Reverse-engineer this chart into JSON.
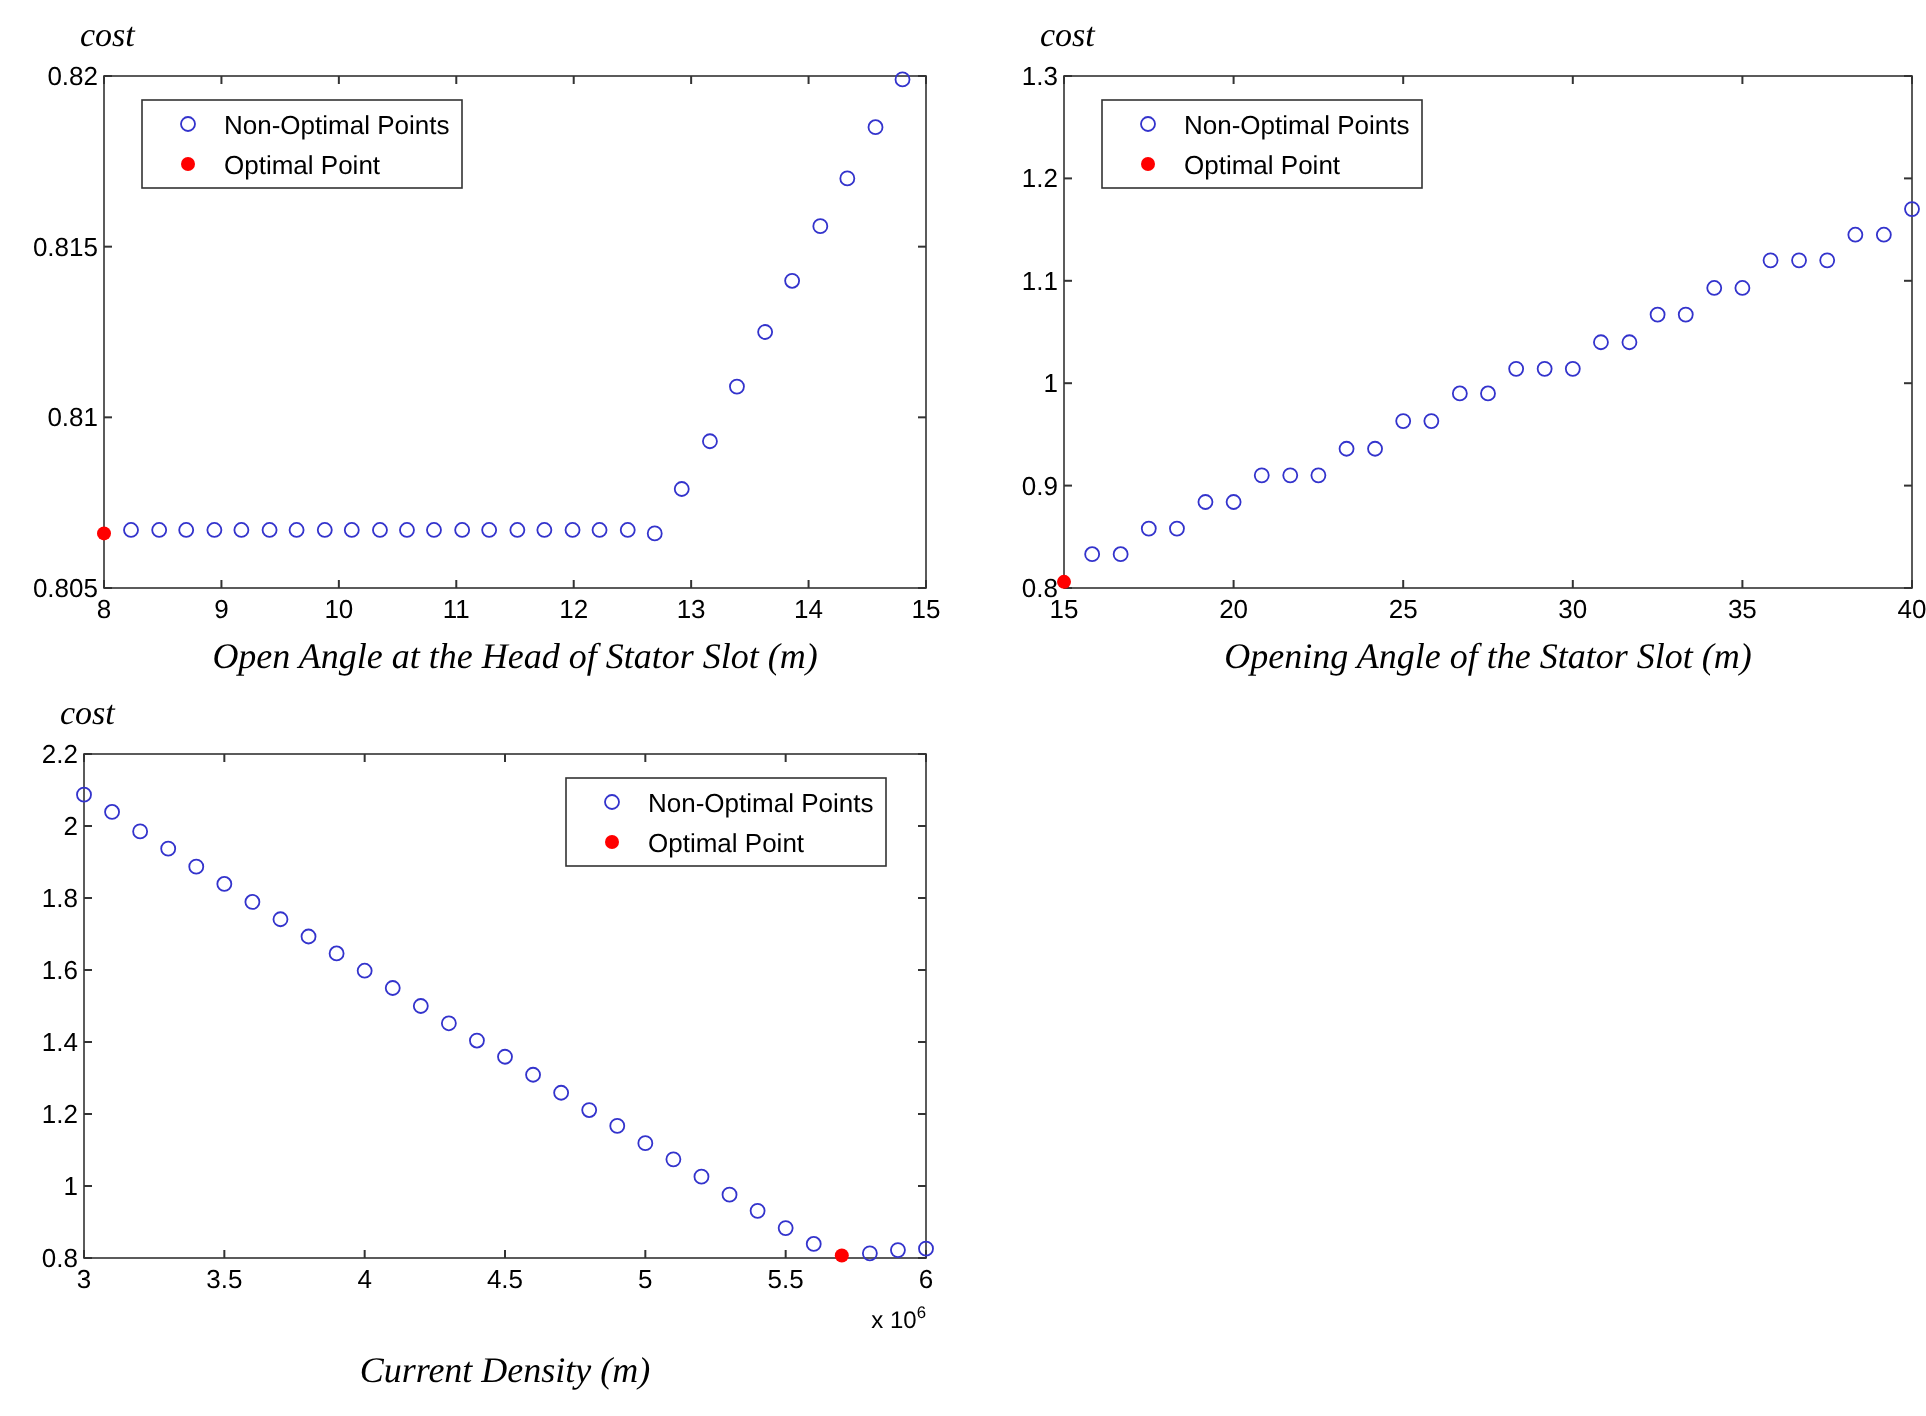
{
  "chart_data": [
    {
      "type": "scatter",
      "ylabel": "cost",
      "xlabel": "Open Angle at the Head of Stator Slot (m)",
      "xlim": [
        8,
        15
      ],
      "xticks": [
        8,
        9,
        10,
        11,
        12,
        13,
        14,
        15
      ],
      "ylim": [
        0.805,
        0.82
      ],
      "yticks": [
        0.805,
        0.81,
        0.815,
        0.82
      ],
      "legend": "top left",
      "marker": "circle",
      "series": [
        {
          "name": "Non-Optimal Points",
          "color": "#3333cc",
          "x": [
            8.23,
            8.47,
            8.7,
            8.94,
            9.17,
            9.41,
            9.64,
            9.88,
            10.11,
            10.35,
            10.58,
            10.81,
            11.05,
            11.28,
            11.52,
            11.75,
            11.99,
            12.22,
            12.46,
            12.69,
            12.92,
            13.16,
            13.39,
            13.63,
            13.86,
            14.1,
            14.33,
            14.57,
            14.8
          ],
          "values": [
            0.8067,
            0.8067,
            0.8067,
            0.8067,
            0.8067,
            0.8067,
            0.8067,
            0.8067,
            0.8067,
            0.8067,
            0.8067,
            0.8067,
            0.8067,
            0.8067,
            0.8067,
            0.8067,
            0.8067,
            0.8067,
            0.8067,
            0.8066,
            0.8079,
            0.8093,
            0.8109,
            0.8125,
            0.814,
            0.8156,
            0.817,
            0.8185,
            0.8199
          ]
        },
        {
          "name": "Optimal Point",
          "color": "#ff0000",
          "x": [
            8
          ],
          "values": [
            0.8066
          ]
        }
      ]
    },
    {
      "type": "scatter",
      "ylabel": "cost",
      "xlabel": "Opening Angle of the Stator Slot (m)",
      "xlim": [
        15,
        40
      ],
      "xticks": [
        15,
        20,
        25,
        30,
        35,
        40
      ],
      "ylim": [
        0.8,
        1.3
      ],
      "yticks": [
        0.8,
        0.9,
        1,
        1.1,
        1.2,
        1.3
      ],
      "legend": "top left",
      "marker": "circle",
      "series": [
        {
          "name": "Non-Optimal Points",
          "color": "#3333cc",
          "x": [
            15.83,
            16.67,
            17.5,
            18.33,
            19.17,
            20,
            20.83,
            21.67,
            22.5,
            23.33,
            24.17,
            25,
            25.83,
            26.67,
            27.5,
            28.33,
            29.17,
            30,
            30.83,
            31.67,
            32.5,
            33.33,
            34.17,
            35,
            35.83,
            36.67,
            37.5,
            38.33,
            39.17,
            40
          ],
          "values": [
            0.833,
            0.833,
            0.858,
            0.858,
            0.884,
            0.884,
            0.91,
            0.91,
            0.91,
            0.936,
            0.936,
            0.963,
            0.963,
            0.99,
            0.99,
            1.014,
            1.014,
            1.014,
            1.04,
            1.04,
            1.067,
            1.067,
            1.093,
            1.093,
            1.12,
            1.12,
            1.12,
            1.145,
            1.145,
            1.17
          ]
        },
        {
          "name": "Optimal Point",
          "color": "#ff0000",
          "x": [
            15
          ],
          "values": [
            0.806
          ]
        }
      ]
    },
    {
      "type": "scatter",
      "ylabel": "cost",
      "xlabel": "Current Density (m)",
      "annotations": [
        "x 10$^{6}$"
      ],
      "xlim": [
        3,
        6
      ],
      "xticks": [
        3,
        3.5,
        4,
        4.5,
        5,
        5.5,
        6
      ],
      "ylim": [
        0.8,
        2.2
      ],
      "yticks": [
        0.8,
        1,
        1.2,
        1.4,
        1.6,
        1.8,
        2,
        2.2
      ],
      "legend": "top right",
      "marker": "circle",
      "series": [
        {
          "name": "Non-Optimal Points",
          "color": "#3333cc",
          "x": [
            3,
            3.1,
            3.2,
            3.3,
            3.4,
            3.5,
            3.6,
            3.7,
            3.8,
            3.9,
            4,
            4.1,
            4.2,
            4.3,
            4.4,
            4.5,
            4.6,
            4.7,
            4.8,
            4.9,
            5,
            5.1,
            5.2,
            5.3,
            5.4,
            5.5,
            5.6,
            5.8,
            5.9,
            6
          ],
          "values": [
            2.087,
            2.039,
            1.985,
            1.937,
            1.887,
            1.839,
            1.789,
            1.741,
            1.693,
            1.646,
            1.598,
            1.55,
            1.5,
            1.452,
            1.404,
            1.359,
            1.309,
            1.259,
            1.211,
            1.167,
            1.119,
            1.074,
            1.026,
            0.976,
            0.931,
            0.883,
            0.839,
            0.813,
            0.822,
            0.826
          ]
        },
        {
          "name": "Optimal Point",
          "color": "#ff0000",
          "x": [
            5.7
          ],
          "values": [
            0.807
          ]
        }
      ]
    }
  ]
}
